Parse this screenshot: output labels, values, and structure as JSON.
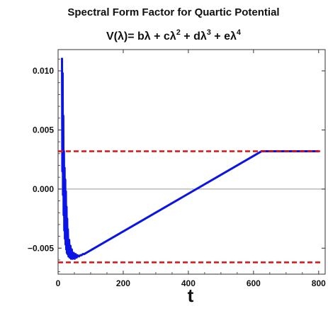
{
  "chart_data": {
    "type": "line",
    "title_line1": "Spectral Form Factor for Quartic Potential",
    "title_line2": {
      "prefix": "V(λ)= bλ + cλ",
      "exp2": "2",
      "mid": " + dλ",
      "exp3": "3",
      "mid2": " + eλ",
      "exp4": "4"
    },
    "xlabel": "t",
    "ylabel": "",
    "xlim": [
      0,
      820
    ],
    "ylim": [
      -0.0072,
      0.0118
    ],
    "x_ticks": [
      0,
      200,
      400,
      600,
      800
    ],
    "y_ticks": [
      -0.005,
      0.0,
      0.005,
      0.01
    ],
    "y_tick_labels": [
      "−0.005",
      "0.000",
      "0.005",
      "0.010"
    ],
    "x_tick_labels": [
      "0",
      "200",
      "400",
      "600",
      "800"
    ],
    "zero_line": true,
    "colors": {
      "series": "#0a14e6",
      "reference": "#e01010",
      "zero_line": "#999999",
      "frame": "#333333"
    },
    "series": [
      {
        "style": "solid",
        "noisy_start": {
          "x": [
            12,
            13,
            14,
            15,
            16,
            17,
            18,
            19,
            20,
            21,
            22,
            23,
            24,
            25,
            26,
            27,
            28,
            29,
            30,
            32,
            34,
            36,
            38,
            40,
            42,
            45,
            48,
            51,
            54,
            57,
            60,
            64,
            68,
            72,
            76,
            80
          ],
          "y": [
            0.0111,
            0.0015,
            0.0098,
            -0.0005,
            0.0062,
            -0.0022,
            0.0032,
            -0.0035,
            0.0018,
            -0.0042,
            0.0008,
            -0.0047,
            -0.0002,
            -0.0051,
            -0.0015,
            -0.0054,
            -0.0025,
            -0.0055,
            -0.0034,
            -0.0057,
            -0.0043,
            -0.0058,
            -0.0048,
            -0.0059,
            -0.0051,
            -0.0059,
            -0.0054,
            -0.0059,
            -0.0055,
            -0.0058,
            -0.0056,
            -0.0057,
            -0.0056,
            -0.0056,
            -0.0055,
            -0.0055
          ]
        },
        "linear_ramp": {
          "x": [
            80,
            625
          ],
          "y": [
            -0.0055,
            0.0032
          ]
        },
        "plateau": {
          "x": [
            625,
            800
          ],
          "y": [
            0.0032,
            0.0032
          ]
        }
      }
    ],
    "reference_lines": [
      {
        "y": 0.0032,
        "style": "dashed"
      },
      {
        "y": -0.0062,
        "style": "dashed"
      }
    ]
  }
}
